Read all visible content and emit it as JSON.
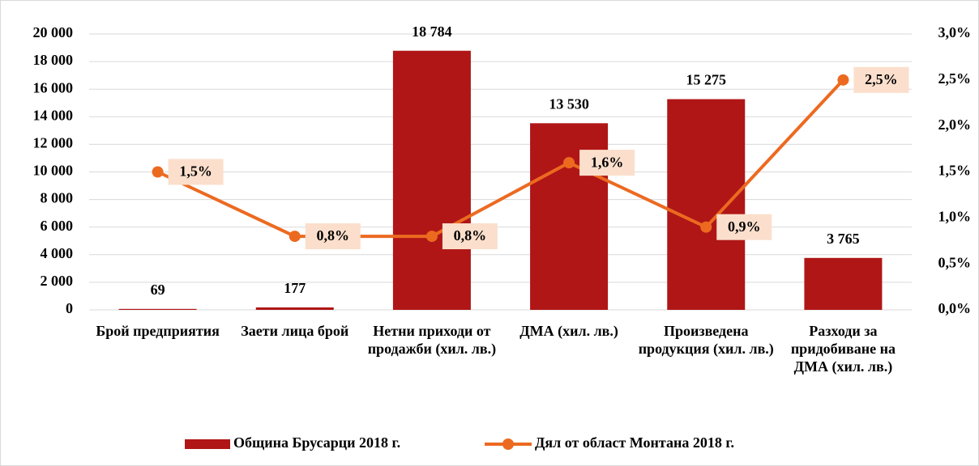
{
  "chart_data": {
    "type": "bar_line",
    "categories": [
      "Брой предприятия",
      "Заети лица брой",
      "Нетни приходи от продажби (хил. лв.)",
      "ДМА (хил. лв.)",
      "Произведена продукция (хил. лв.)",
      "Разходи за придобиване на ДМА (хил. лв.)"
    ],
    "series": [
      {
        "name": "Община Брусарци 2018 г.",
        "type": "bar",
        "color": "#b01616",
        "values": [
          69,
          177,
          18784,
          13530,
          15275,
          3765
        ],
        "value_labels": [
          "69",
          "177",
          "18 784",
          "13 530",
          "15 275",
          "3 765"
        ]
      },
      {
        "name": "Дял от област Монтана 2018 г.",
        "type": "line",
        "axis": "y2",
        "color": "#ec6a20",
        "values": [
          1.5,
          0.8,
          0.8,
          1.6,
          0.9,
          2.5
        ],
        "value_labels": [
          "1,5%",
          "0,8%",
          "0,8%",
          "1,6%",
          "0,9%",
          "2,5%"
        ]
      }
    ],
    "ylim": [
      0,
      20000
    ],
    "yticks": [
      0,
      {
        "value": 2000,
        "label": "2 000"
      },
      {
        "value": 4000,
        "label": "4 000"
      },
      {
        "value": 6000,
        "label": "6 000"
      },
      {
        "value": 8000,
        "label": "8 000"
      },
      {
        "value": 10000,
        "label": "10 000"
      },
      {
        "value": 12000,
        "label": "12 000"
      },
      {
        "value": 14000,
        "label": "14 000"
      },
      {
        "value": 16000,
        "label": "16 000"
      },
      {
        "value": 18000,
        "label": "18 000"
      },
      {
        "value": 20000,
        "label": "20 000"
      }
    ],
    "y2lim": [
      0,
      3
    ],
    "y2ticks": [
      {
        "value": 0,
        "label": "0,0%"
      },
      {
        "value": 0.5,
        "label": "0,5%"
      },
      {
        "value": 1,
        "label": "1,0%"
      },
      {
        "value": 1.5,
        "label": "1,5%"
      },
      {
        "value": 2,
        "label": "2,0%"
      },
      {
        "value": 2.5,
        "label": "2,5%"
      },
      {
        "value": 3,
        "label": "3,0%"
      }
    ],
    "grid": true,
    "legend": "bottom"
  }
}
